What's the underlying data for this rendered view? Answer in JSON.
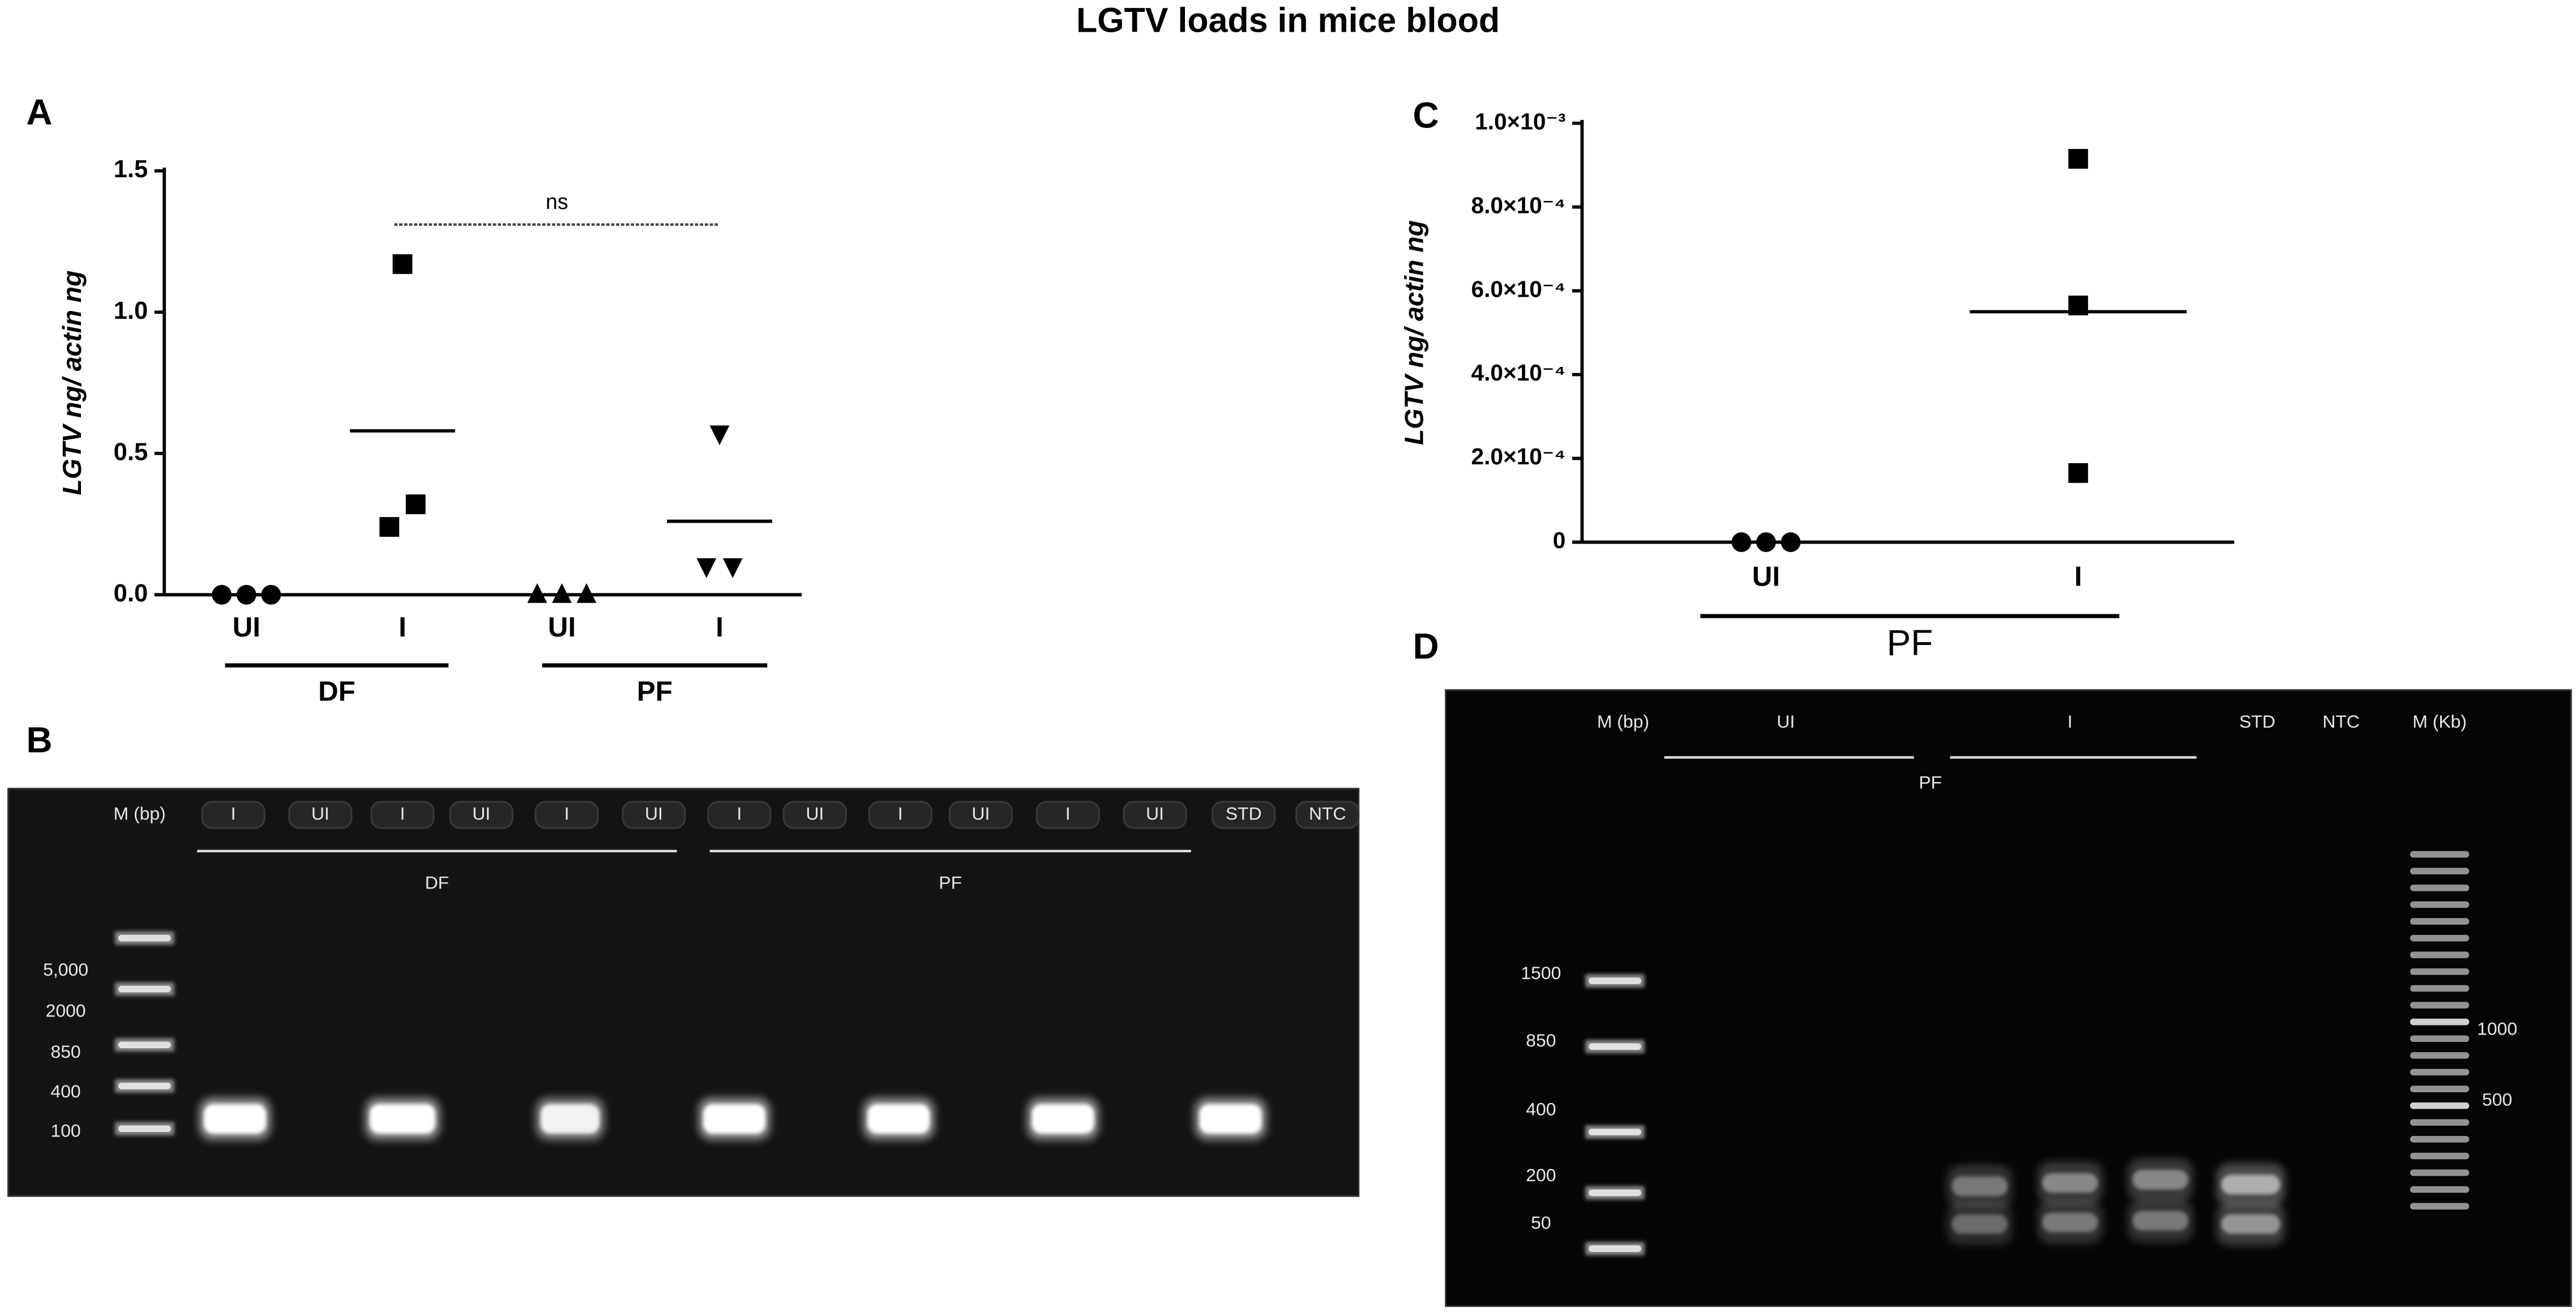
{
  "title": "LGTV loads in mice blood",
  "panels": [
    "A",
    "B",
    "C",
    "D"
  ],
  "chart_data": [
    {
      "type": "dot",
      "ylabel": "LGTV ng/ actin ng",
      "categories": [
        "UI",
        "I",
        "UI",
        "I"
      ],
      "groups": [
        "DF",
        "PF"
      ],
      "markers": [
        "circle",
        "square",
        "triangle",
        "triangle-down"
      ],
      "color": "#000000",
      "points": [
        [
          0,
          0,
          0
        ],
        [
          0.24,
          1.17,
          0.32
        ],
        [
          0,
          0,
          0
        ],
        [
          0.1,
          0.57,
          0.1
        ]
      ],
      "means": [
        null,
        0.58,
        null,
        0.26
      ],
      "ylim": [
        0,
        1.5
      ],
      "yticks": [
        {
          "value": 0,
          "label": "0.0"
        },
        {
          "value": 0.5,
          "label": "0.5"
        },
        {
          "value": 1,
          "label": "1.0"
        },
        {
          "value": 1.5,
          "label": "1.5"
        }
      ],
      "annotation": {
        "text": "ns",
        "y": 1.31
      }
    },
    {
      "type": "dot",
      "ylabel": "LGTV ng/ actin ng",
      "categories": [
        "UI",
        "I"
      ],
      "groups": [
        "PF"
      ],
      "markers": [
        "circle",
        "square"
      ],
      "color": "#000000",
      "points": [
        [
          0,
          0,
          0
        ],
        [
          0.000915,
          0.000565,
          0.000165
        ]
      ],
      "means": [
        null,
        0.00055
      ],
      "ylim": [
        0,
        0.001
      ],
      "yticks": [
        0,
        {
          "value": 0.0002,
          "label": "2.0×10⁻⁴"
        },
        {
          "value": 0.0004,
          "label": "4.0×10⁻⁴"
        },
        {
          "value": 0.0006,
          "label": "6.0×10⁻⁴"
        },
        {
          "value": 0.0008,
          "label": "8.0×10⁻⁴"
        },
        {
          "value": 0.001,
          "label": "1.0×10⁻³"
        }
      ]
    }
  ],
  "gels": [
    {
      "lanes": [
        "M (bp)",
        "I",
        "UI",
        "I",
        "UI",
        "I",
        "UI",
        "I",
        "UI",
        "I",
        "UI",
        "I",
        "UI",
        "STD",
        "NTC"
      ],
      "groups": [
        "DF",
        "PF"
      ],
      "ladder": [
        "5,000",
        "2000",
        "850",
        "400",
        "100"
      ]
    },
    {
      "lanes": [
        "M (bp)",
        "UI",
        "I",
        "STD",
        "NTC",
        "M (Kb)"
      ],
      "groups": [
        "PF"
      ],
      "ladder": [
        "1500",
        "850",
        "400",
        "200",
        "50"
      ],
      "ladder2": [
        "1000",
        "500"
      ]
    }
  ]
}
